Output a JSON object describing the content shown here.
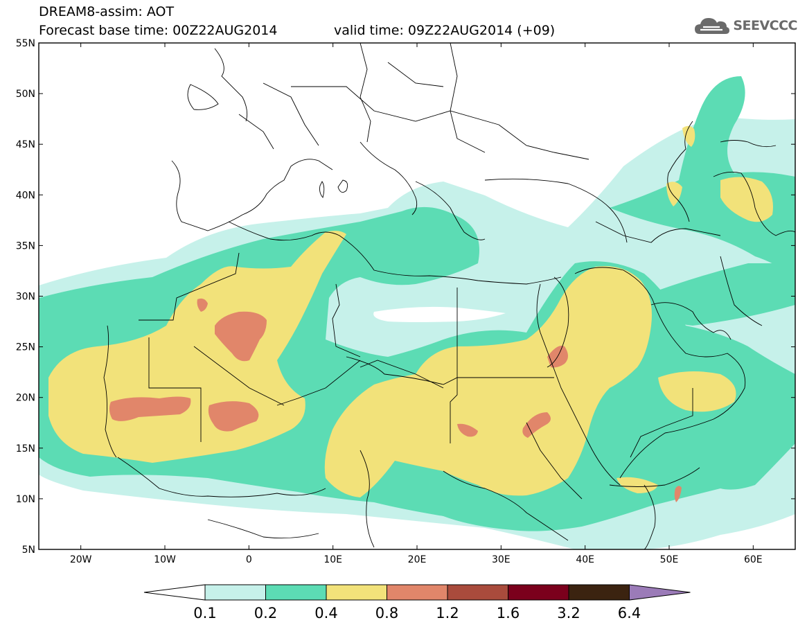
{
  "header": {
    "title_line1": "DREAM8-assim: AOT",
    "base_time": "Forecast base time: 00Z22AUG2014",
    "valid_time": "valid time: 09Z22AUG2014 (+09)"
  },
  "logo": {
    "text": "SEEVCCC",
    "icon": "cloud-logo-icon"
  },
  "map": {
    "lat_labels": [
      "55N",
      "50N",
      "45N",
      "40N",
      "35N",
      "30N",
      "25N",
      "20N",
      "15N",
      "10N",
      "5N"
    ],
    "lon_labels": [
      "20W",
      "10W",
      "0",
      "10E",
      "20E",
      "30E",
      "40E",
      "50E",
      "60E"
    ],
    "lat_range": [
      5,
      55
    ],
    "lon_range": [
      -25,
      65
    ]
  },
  "colorbar": {
    "labels": [
      "0.1",
      "0.2",
      "0.4",
      "0.8",
      "1.2",
      "1.6",
      "3.2",
      "6.4"
    ],
    "colors": [
      "#ffffff",
      "#c6f1ea",
      "#5cdcb4",
      "#f2e27a",
      "#e1866a",
      "#a94b3c",
      "#7b001c",
      "#3b2310",
      "#9b7bb8"
    ]
  }
}
